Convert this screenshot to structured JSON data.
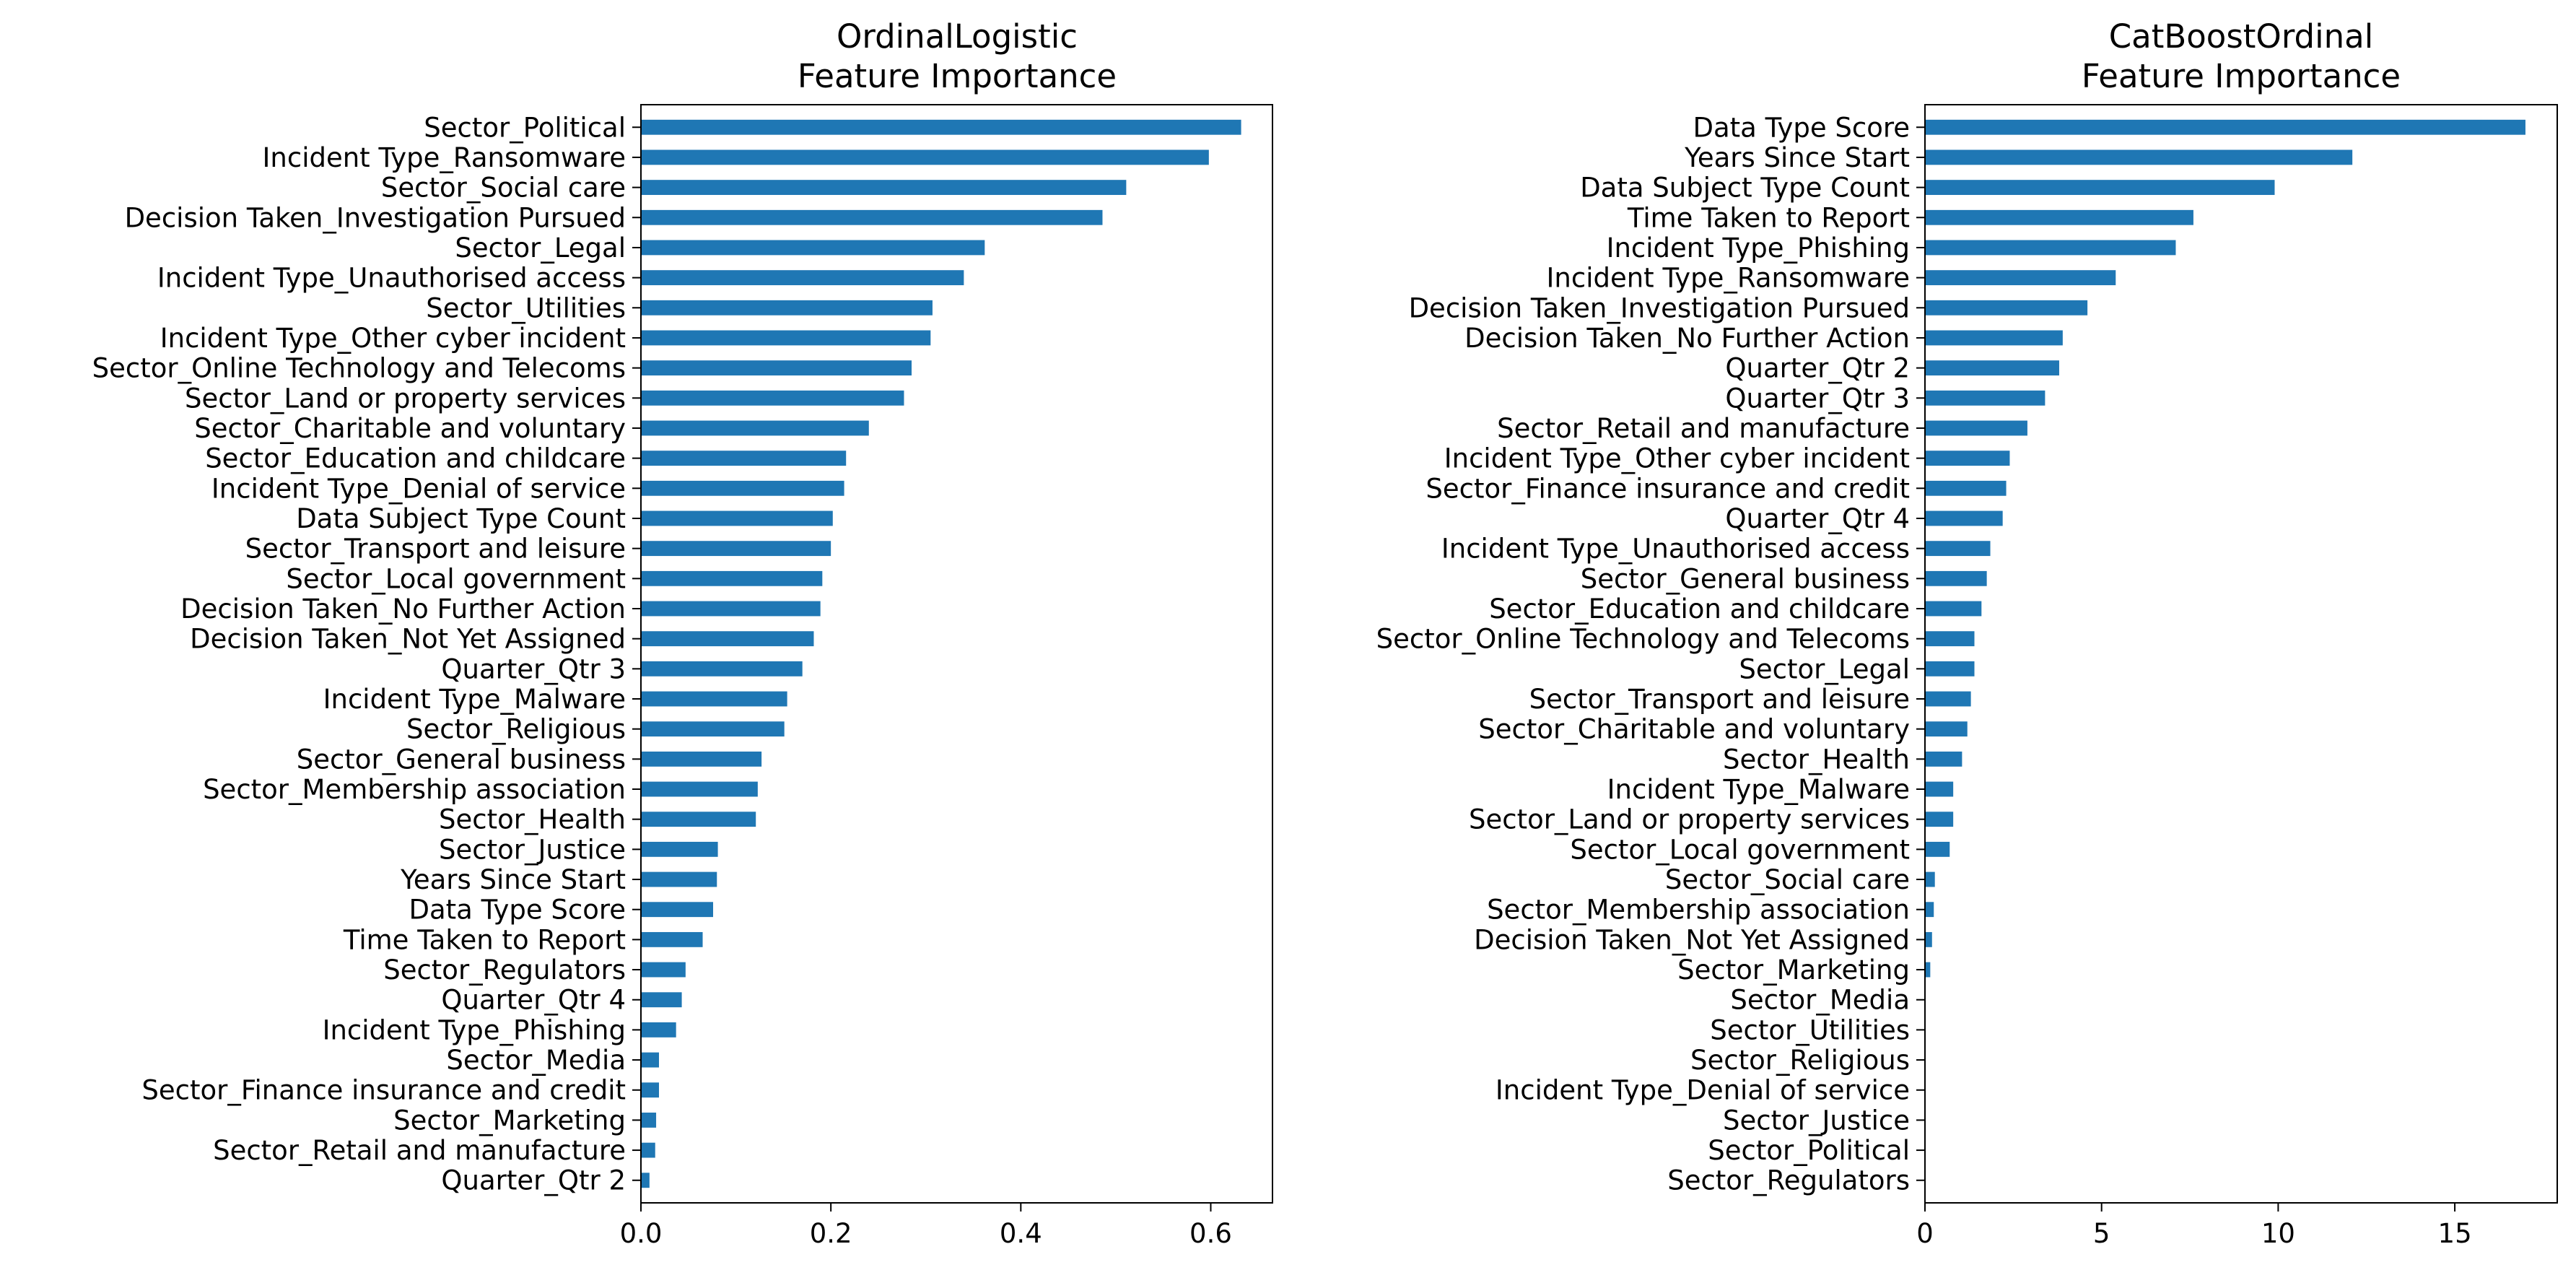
{
  "chart_data": [
    {
      "type": "bar",
      "orientation": "horizontal",
      "title": "OrdinalLogistic\nFeature Importance",
      "title_lines": [
        "OrdinalLogistic",
        "Feature Importance"
      ],
      "bar_color": "#1f77b4",
      "xlim": [
        0,
        0.665
      ],
      "xticks": [
        0.0,
        0.2,
        0.4,
        0.6
      ],
      "xtick_labels": [
        "0.0",
        "0.2",
        "0.4",
        "0.6"
      ],
      "grid": false,
      "categories": [
        "Sector_Political",
        "Incident Type_Ransomware",
        "Sector_Social care",
        "Decision Taken_Investigation Pursued",
        "Sector_Legal",
        "Incident Type_Unauthorised access",
        "Sector_Utilities",
        "Incident Type_Other cyber incident",
        "Sector_Online Technology and Telecoms",
        "Sector_Land or property services",
        "Sector_Charitable and voluntary",
        "Sector_Education and childcare",
        "Incident Type_Denial of service",
        "Data Subject Type Count",
        "Sector_Transport and leisure",
        "Sector_Local government",
        "Decision Taken_No Further Action",
        "Decision Taken_Not Yet Assigned",
        "Quarter_Qtr 3",
        "Incident Type_Malware",
        "Sector_Religious",
        "Sector_General business",
        "Sector_Membership association",
        "Sector_Health",
        "Sector_Justice",
        "Years Since Start",
        "Data Type Score",
        "Time Taken to Report",
        "Sector_Regulators",
        "Quarter_Qtr 4",
        "Incident Type_Phishing",
        "Sector_Media",
        "Sector_Finance insurance and credit",
        "Sector_Marketing",
        "Sector_Retail and manufacture",
        "Quarter_Qtr 2"
      ],
      "values": [
        0.632,
        0.598,
        0.511,
        0.486,
        0.362,
        0.34,
        0.307,
        0.305,
        0.285,
        0.277,
        0.24,
        0.216,
        0.214,
        0.202,
        0.2,
        0.191,
        0.189,
        0.182,
        0.17,
        0.154,
        0.151,
        0.127,
        0.123,
        0.121,
        0.081,
        0.08,
        0.076,
        0.065,
        0.047,
        0.043,
        0.037,
        0.019,
        0.019,
        0.016,
        0.015,
        0.009
      ]
    },
    {
      "type": "bar",
      "orientation": "horizontal",
      "title": "CatBoostOrdinal\nFeature Importance",
      "title_lines": [
        "CatBoostOrdinal",
        "Feature Importance"
      ],
      "bar_color": "#1f77b4",
      "xlim": [
        0,
        17.9
      ],
      "xticks": [
        0,
        5,
        10,
        15
      ],
      "xtick_labels": [
        "0",
        "5",
        "10",
        "15"
      ],
      "grid": false,
      "categories": [
        "Data Type Score",
        "Years Since Start",
        "Data Subject Type Count",
        "Time Taken to Report",
        "Incident Type_Phishing",
        "Incident Type_Ransomware",
        "Decision Taken_Investigation Pursued",
        "Decision Taken_No Further Action",
        "Quarter_Qtr 2",
        "Quarter_Qtr 3",
        "Sector_Retail and manufacture",
        "Incident Type_Other cyber incident",
        "Sector_Finance insurance and credit",
        "Quarter_Qtr 4",
        "Incident Type_Unauthorised access",
        "Sector_General business",
        "Sector_Education and childcare",
        "Sector_Online Technology and Telecoms",
        "Sector_Legal",
        "Sector_Transport and leisure",
        "Sector_Charitable and voluntary",
        "Sector_Health",
        "Incident Type_Malware",
        "Sector_Land or property services",
        "Sector_Local government",
        "Sector_Social care",
        "Sector_Membership association",
        "Decision Taken_Not Yet Assigned",
        "Sector_Marketing",
        "Sector_Media",
        "Sector_Utilities",
        "Sector_Religious",
        "Incident Type_Denial of service",
        "Sector_Justice",
        "Sector_Political",
        "Sector_Regulators"
      ],
      "values": [
        17.0,
        12.1,
        9.9,
        7.6,
        7.1,
        5.4,
        4.6,
        3.9,
        3.8,
        3.4,
        2.9,
        2.4,
        2.3,
        2.2,
        1.85,
        1.75,
        1.6,
        1.4,
        1.4,
        1.3,
        1.2,
        1.05,
        0.8,
        0.8,
        0.7,
        0.28,
        0.25,
        0.2,
        0.15,
        0.0,
        0.0,
        0.0,
        0.0,
        0.0,
        0.0,
        0.0
      ]
    }
  ]
}
